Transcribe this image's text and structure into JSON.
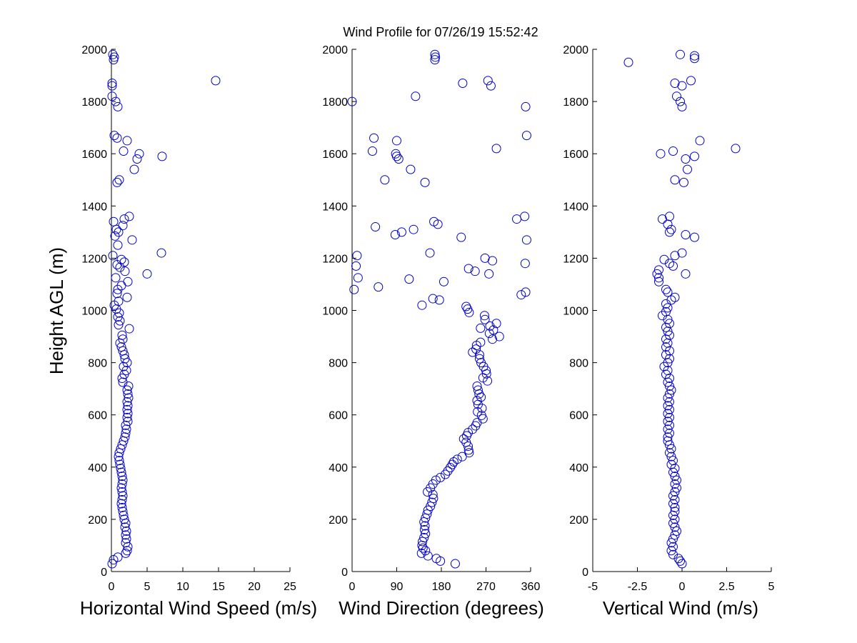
{
  "title": "Wind Profile for  07/26/19 15:52:42",
  "ylabel": "Height AGL (m)",
  "marker_color": "#0000cc",
  "chart_data": [
    {
      "type": "scatter",
      "id": "speed",
      "xlabel": "Horizontal Wind Speed (m/s)",
      "xlim": [
        0,
        25
      ],
      "xticks": [
        0,
        5,
        10,
        15,
        20,
        25
      ],
      "xtick_labels": [
        "0",
        "5",
        "10",
        "15",
        "20",
        "25"
      ],
      "ylim": [
        0,
        2000
      ],
      "yticks": [
        0,
        200,
        400,
        600,
        800,
        1000,
        1200,
        1400,
        1600,
        1800,
        2000
      ],
      "ytick_labels": [
        "0",
        "200",
        "400",
        "600",
        "800",
        "1000",
        "1200",
        "1400",
        "1600",
        "1800",
        "2000"
      ],
      "points": [
        [
          0.1,
          30
        ],
        [
          0.3,
          45
        ],
        [
          0.9,
          55
        ],
        [
          2.0,
          70
        ],
        [
          2.2,
          80
        ],
        [
          2.3,
          95
        ],
        [
          2.0,
          110
        ],
        [
          2.1,
          125
        ],
        [
          2.0,
          140
        ],
        [
          2.1,
          155
        ],
        [
          1.9,
          170
        ],
        [
          2.0,
          185
        ],
        [
          1.8,
          200
        ],
        [
          1.7,
          215
        ],
        [
          1.6,
          230
        ],
        [
          1.5,
          245
        ],
        [
          1.4,
          260
        ],
        [
          1.5,
          275
        ],
        [
          1.6,
          290
        ],
        [
          1.5,
          305
        ],
        [
          1.4,
          320
        ],
        [
          1.5,
          335
        ],
        [
          1.6,
          350
        ],
        [
          1.5,
          365
        ],
        [
          1.4,
          380
        ],
        [
          1.3,
          395
        ],
        [
          1.2,
          410
        ],
        [
          1.1,
          425
        ],
        [
          1.0,
          440
        ],
        [
          1.1,
          455
        ],
        [
          1.3,
          470
        ],
        [
          1.5,
          485
        ],
        [
          1.7,
          500
        ],
        [
          1.9,
          515
        ],
        [
          2.0,
          530
        ],
        [
          2.1,
          545
        ],
        [
          2.0,
          560
        ],
        [
          2.3,
          575
        ],
        [
          2.2,
          590
        ],
        [
          2.3,
          605
        ],
        [
          2.2,
          620
        ],
        [
          2.3,
          635
        ],
        [
          2.2,
          650
        ],
        [
          2.4,
          665
        ],
        [
          2.3,
          680
        ],
        [
          2.2,
          695
        ],
        [
          2.4,
          710
        ],
        [
          1.6,
          725
        ],
        [
          1.5,
          740
        ],
        [
          1.8,
          755
        ],
        [
          2.1,
          770
        ],
        [
          1.7,
          785
        ],
        [
          2.2,
          800
        ],
        [
          1.9,
          815
        ],
        [
          1.8,
          830
        ],
        [
          1.6,
          845
        ],
        [
          1.4,
          860
        ],
        [
          1.2,
          875
        ],
        [
          1.6,
          890
        ],
        [
          1.5,
          905
        ],
        [
          2.5,
          930
        ],
        [
          1.0,
          945
        ],
        [
          1.2,
          960
        ],
        [
          0.9,
          975
        ],
        [
          1.1,
          990
        ],
        [
          0.7,
          1005
        ],
        [
          0.4,
          1020
        ],
        [
          1.0,
          1035
        ],
        [
          2.2,
          1050
        ],
        [
          0.8,
          1065
        ],
        [
          0.9,
          1080
        ],
        [
          1.4,
          1095
        ],
        [
          2.3,
          1110
        ],
        [
          0.6,
          1125
        ],
        [
          5.0,
          1140
        ],
        [
          1.9,
          1150
        ],
        [
          1.2,
          1165
        ],
        [
          0.8,
          1175
        ],
        [
          1.8,
          1185
        ],
        [
          1.4,
          1195
        ],
        [
          0.2,
          1210
        ],
        [
          7.0,
          1220
        ],
        [
          0.9,
          1250
        ],
        [
          2.9,
          1270
        ],
        [
          0.5,
          1285
        ],
        [
          1.0,
          1300
        ],
        [
          0.7,
          1310
        ],
        [
          1.6,
          1325
        ],
        [
          0.3,
          1340
        ],
        [
          1.8,
          1350
        ],
        [
          2.5,
          1360
        ],
        [
          0.8,
          1490
        ],
        [
          1.1,
          1500
        ],
        [
          3.2,
          1540
        ],
        [
          3.6,
          1580
        ],
        [
          7.1,
          1590
        ],
        [
          3.9,
          1600
        ],
        [
          1.7,
          1610
        ],
        [
          2.2,
          1650
        ],
        [
          0.8,
          1660
        ],
        [
          0.4,
          1670
        ],
        [
          0.9,
          1780
        ],
        [
          0.6,
          1800
        ],
        [
          0.1,
          1820
        ],
        [
          0.1,
          1860
        ],
        [
          0.1,
          1870
        ],
        [
          14.6,
          1880
        ],
        [
          0.3,
          1960
        ],
        [
          0.4,
          1970
        ],
        [
          0.2,
          1980
        ]
      ]
    },
    {
      "type": "scatter",
      "id": "direction",
      "xlabel": "Wind Direction (degrees)",
      "xlim": [
        0,
        360
      ],
      "xticks": [
        0,
        90,
        180,
        270,
        360
      ],
      "xtick_labels": [
        "0",
        "90",
        "180",
        "270",
        "360"
      ],
      "ylim": [
        0,
        2000
      ],
      "yticks": [
        0,
        200,
        400,
        600,
        800,
        1000,
        1200,
        1400,
        1600,
        1800,
        2000
      ],
      "ytick_labels": [
        "0",
        "200",
        "400",
        "600",
        "800",
        "1000",
        "1200",
        "1400",
        "1600",
        "1800",
        "2000"
      ],
      "points": [
        [
          208,
          30
        ],
        [
          178,
          40
        ],
        [
          170,
          50
        ],
        [
          153,
          60
        ],
        [
          140,
          70
        ],
        [
          148,
          80
        ],
        [
          143,
          90
        ],
        [
          141,
          100
        ],
        [
          142,
          115
        ],
        [
          145,
          130
        ],
        [
          148,
          145
        ],
        [
          146,
          160
        ],
        [
          147,
          175
        ],
        [
          145,
          190
        ],
        [
          148,
          205
        ],
        [
          151,
          220
        ],
        [
          153,
          235
        ],
        [
          158,
          250
        ],
        [
          161,
          265
        ],
        [
          164,
          280
        ],
        [
          163,
          295
        ],
        [
          152,
          305
        ],
        [
          158,
          320
        ],
        [
          163,
          335
        ],
        [
          169,
          350
        ],
        [
          178,
          360
        ],
        [
          188,
          372
        ],
        [
          193,
          385
        ],
        [
          198,
          398
        ],
        [
          202,
          410
        ],
        [
          205,
          420
        ],
        [
          212,
          430
        ],
        [
          222,
          440
        ],
        [
          236,
          455
        ],
        [
          235,
          465
        ],
        [
          234,
          480
        ],
        [
          230,
          495
        ],
        [
          225,
          508
        ],
        [
          231,
          520
        ],
        [
          234,
          532
        ],
        [
          243,
          545
        ],
        [
          249,
          558
        ],
        [
          252,
          570
        ],
        [
          264,
          585
        ],
        [
          261,
          598
        ],
        [
          253,
          612
        ],
        [
          262,
          625
        ],
        [
          254,
          640
        ],
        [
          252,
          655
        ],
        [
          260,
          668
        ],
        [
          256,
          680
        ],
        [
          254,
          695
        ],
        [
          252,
          710
        ],
        [
          273,
          730
        ],
        [
          264,
          742
        ],
        [
          271,
          757
        ],
        [
          270,
          770
        ],
        [
          265,
          785
        ],
        [
          260,
          800
        ],
        [
          257,
          815
        ],
        [
          257,
          830
        ],
        [
          243,
          840
        ],
        [
          250,
          852
        ],
        [
          251,
          866
        ],
        [
          259,
          878
        ],
        [
          283,
          890
        ],
        [
          297,
          900
        ],
        [
          277,
          912
        ],
        [
          285,
          925
        ],
        [
          259,
          932
        ],
        [
          278,
          940
        ],
        [
          291,
          950
        ],
        [
          268,
          965
        ],
        [
          267,
          980
        ],
        [
          236,
          992
        ],
        [
          233,
          1005
        ],
        [
          230,
          1015
        ],
        [
          141,
          1020
        ],
        [
          176,
          1040
        ],
        [
          163,
          1045
        ],
        [
          341,
          1060
        ],
        [
          350,
          1070
        ],
        [
          53,
          1090
        ],
        [
          4,
          1080
        ],
        [
          12,
          1125
        ],
        [
          115,
          1120
        ],
        [
          276,
          1140
        ],
        [
          185,
          1110
        ],
        [
          8,
          1170
        ],
        [
          248,
          1150
        ],
        [
          235,
          1160
        ],
        [
          349,
          1180
        ],
        [
          283,
          1190
        ],
        [
          268,
          1200
        ],
        [
          10,
          1210
        ],
        [
          157,
          1220
        ],
        [
          220,
          1280
        ],
        [
          352,
          1270
        ],
        [
          87,
          1290
        ],
        [
          100,
          1300
        ],
        [
          124,
          1310
        ],
        [
          47,
          1320
        ],
        [
          173,
          1330
        ],
        [
          165,
          1340
        ],
        [
          332,
          1350
        ],
        [
          348,
          1360
        ],
        [
          147,
          1490
        ],
        [
          66,
          1500
        ],
        [
          118,
          1540
        ],
        [
          94,
          1580
        ],
        [
          90,
          1590
        ],
        [
          88,
          1600
        ],
        [
          41,
          1610
        ],
        [
          291,
          1620
        ],
        [
          90,
          1650
        ],
        [
          44,
          1660
        ],
        [
          352,
          1670
        ],
        [
          350,
          1780
        ],
        [
          0,
          1800
        ],
        [
          128,
          1820
        ],
        [
          223,
          1870
        ],
        [
          280,
          1860
        ],
        [
          274,
          1880
        ],
        [
          167,
          1960
        ],
        [
          168,
          1970
        ],
        [
          167,
          1980
        ]
      ]
    },
    {
      "type": "scatter",
      "id": "vertical",
      "xlabel": "Vertical Wind (m/s)",
      "xlim": [
        -5,
        5
      ],
      "xticks": [
        -5,
        -2.5,
        0,
        2.5,
        5
      ],
      "xtick_labels": [
        "-5",
        "-2.5",
        "0",
        "2.5",
        "5"
      ],
      "ylim": [
        0,
        2000
      ],
      "yticks": [
        0,
        200,
        400,
        600,
        800,
        1000,
        1200,
        1400,
        1600,
        1800,
        2000
      ],
      "ytick_labels": [
        "0",
        "200",
        "400",
        "600",
        "800",
        "1000",
        "1200",
        "1400",
        "1600",
        "1800",
        "2000"
      ],
      "points": [
        [
          0.0,
          30
        ],
        [
          -0.1,
          40
        ],
        [
          -0.2,
          50
        ],
        [
          -0.5,
          65
        ],
        [
          -0.6,
          80
        ],
        [
          -0.5,
          95
        ],
        [
          -0.6,
          110
        ],
        [
          -0.5,
          125
        ],
        [
          -0.4,
          140
        ],
        [
          -0.3,
          155
        ],
        [
          -0.4,
          170
        ],
        [
          -0.5,
          185
        ],
        [
          -0.4,
          200
        ],
        [
          -0.5,
          215
        ],
        [
          -0.4,
          230
        ],
        [
          -0.4,
          245
        ],
        [
          -0.5,
          260
        ],
        [
          -0.4,
          275
        ],
        [
          -0.5,
          290
        ],
        [
          -0.4,
          305
        ],
        [
          -0.3,
          320
        ],
        [
          -0.4,
          335
        ],
        [
          -0.3,
          350
        ],
        [
          -0.4,
          365
        ],
        [
          -0.5,
          380
        ],
        [
          -0.4,
          395
        ],
        [
          -0.6,
          410
        ],
        [
          -0.5,
          425
        ],
        [
          -0.6,
          440
        ],
        [
          -0.7,
          455
        ],
        [
          -0.6,
          470
        ],
        [
          -0.7,
          485
        ],
        [
          -0.8,
          500
        ],
        [
          -0.8,
          515
        ],
        [
          -0.7,
          530
        ],
        [
          -0.8,
          545
        ],
        [
          -0.7,
          560
        ],
        [
          -0.8,
          575
        ],
        [
          -0.7,
          590
        ],
        [
          -0.8,
          605
        ],
        [
          -0.7,
          620
        ],
        [
          -0.8,
          635
        ],
        [
          -0.7,
          650
        ],
        [
          -0.8,
          665
        ],
        [
          -0.7,
          680
        ],
        [
          -0.6,
          695
        ],
        [
          -0.7,
          710
        ],
        [
          -0.8,
          725
        ],
        [
          -0.7,
          740
        ],
        [
          -0.9,
          755
        ],
        [
          -0.8,
          770
        ],
        [
          -1.0,
          785
        ],
        [
          -0.8,
          800
        ],
        [
          -0.7,
          815
        ],
        [
          -0.9,
          830
        ],
        [
          -0.7,
          845
        ],
        [
          -0.9,
          860
        ],
        [
          -0.8,
          875
        ],
        [
          -0.9,
          890
        ],
        [
          -0.7,
          905
        ],
        [
          -0.8,
          920
        ],
        [
          -0.9,
          935
        ],
        [
          -0.7,
          950
        ],
        [
          -0.8,
          965
        ],
        [
          -1.1,
          980
        ],
        [
          -0.9,
          995
        ],
        [
          -0.8,
          1010
        ],
        [
          -0.9,
          1025
        ],
        [
          -0.6,
          1040
        ],
        [
          -0.4,
          1050
        ],
        [
          -0.8,
          1070
        ],
        [
          -0.9,
          1080
        ],
        [
          -1.3,
          1110
        ],
        [
          -1.3,
          1125
        ],
        [
          -1.4,
          1140
        ],
        [
          -1.3,
          1155
        ],
        [
          0.2,
          1140
        ],
        [
          -0.5,
          1170
        ],
        [
          -0.7,
          1180
        ],
        [
          -1.0,
          1195
        ],
        [
          -0.4,
          1210
        ],
        [
          0.0,
          1220
        ],
        [
          0.7,
          1280
        ],
        [
          0.2,
          1290
        ],
        [
          -0.7,
          1300
        ],
        [
          -0.6,
          1310
        ],
        [
          -0.8,
          1330
        ],
        [
          -1.1,
          1350
        ],
        [
          -0.7,
          1360
        ],
        [
          -0.4,
          1500
        ],
        [
          0.1,
          1490
        ],
        [
          0.3,
          1540
        ],
        [
          0.2,
          1580
        ],
        [
          0.7,
          1590
        ],
        [
          -1.2,
          1600
        ],
        [
          -0.5,
          1610
        ],
        [
          3.0,
          1620
        ],
        [
          1.0,
          1650
        ],
        [
          0.0,
          1780
        ],
        [
          -0.1,
          1800
        ],
        [
          -0.3,
          1820
        ],
        [
          0.0,
          1860
        ],
        [
          -0.4,
          1870
        ],
        [
          0.5,
          1880
        ],
        [
          -3.0,
          1950
        ],
        [
          0.7,
          1965
        ],
        [
          0.7,
          1975
        ],
        [
          -0.1,
          1980
        ]
      ]
    }
  ]
}
